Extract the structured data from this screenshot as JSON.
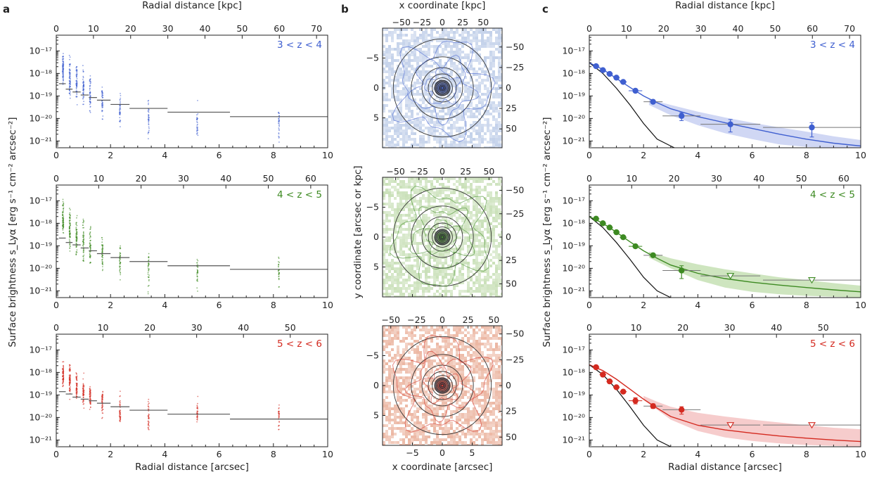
{
  "panel_letters": [
    "a",
    "b",
    "c"
  ],
  "labels": {
    "top_axis": "Radial distance [kpc]",
    "bottom_axis": "Radial distance [arcsec]",
    "y_axis": "Surface brightness s_Lyα [erg s⁻¹ cm⁻² arcsec⁻²]",
    "b_top_axis": "x coordinate [kpc]",
    "b_bottom_axis": "x coordinate [arcsec]",
    "b_y_axis": "y coordinate [arcsec or kpc]"
  },
  "colors": {
    "z34": "#3f5fd0",
    "z45": "#3d8a22",
    "z56": "#d42a20",
    "z34_light": "#c3d1ea",
    "z45_light": "#c9e0b8",
    "z56_light": "#ecb7a3",
    "z34_band": "#c8d0f2",
    "z45_band": "#c6e0b4",
    "z56_band": "#f4c3c3",
    "psf": "#111111",
    "median": "#555555"
  },
  "chart_data": [
    {
      "panel": "a",
      "type": "scatter",
      "redshift_label": "3 < z < 4",
      "x_label": "Radial distance [arcsec]",
      "xlim": [
        0,
        10
      ],
      "x_ticks": [
        0,
        2,
        4,
        6,
        8,
        10
      ],
      "top_x_label": "Radial distance [kpc]",
      "top_ticks_kpc": [
        0,
        10,
        20,
        30,
        40,
        50,
        60,
        70
      ],
      "kpc_per_arcsec": 7.3,
      "y_scale": "log",
      "ylim": [
        5e-22,
        5e-17
      ],
      "y_ticks": [
        "10⁻¹⁷",
        "10⁻¹⁸",
        "10⁻¹⁹",
        "10⁻²⁰",
        "10⁻²¹"
      ],
      "point_columns_x": [
        0.25,
        0.5,
        0.75,
        1.0,
        1.25,
        1.7,
        2.35,
        3.4,
        5.2,
        8.2
      ],
      "column_ranges_log10": [
        [
          -18.7,
          -16.8
        ],
        [
          -19.5,
          -16.9
        ],
        [
          -19.6,
          -17.1
        ],
        [
          -19.8,
          -17.5
        ],
        [
          -19.9,
          -17.8
        ],
        [
          -20.2,
          -18.2
        ],
        [
          -20.8,
          -18.4
        ],
        [
          -21.2,
          -18.7
        ],
        [
          -21.3,
          -19.1
        ],
        [
          -21.2,
          -19.3
        ]
      ],
      "median_bins": [
        {
          "x0": 0.1,
          "x1": 0.35,
          "y": 3.5e-19
        },
        {
          "x0": 0.35,
          "x1": 0.6,
          "y": 2e-19
        },
        {
          "x0": 0.6,
          "x1": 0.9,
          "y": 1.5e-19
        },
        {
          "x0": 0.9,
          "x1": 1.2,
          "y": 1.1e-19
        },
        {
          "x0": 1.2,
          "x1": 1.5,
          "y": 8.5e-20
        },
        {
          "x0": 1.5,
          "x1": 2.0,
          "y": 6.5e-20
        },
        {
          "x0": 2.0,
          "x1": 2.7,
          "y": 4.2e-20
        },
        {
          "x0": 2.7,
          "x1": 4.1,
          "y": 2.8e-20
        },
        {
          "x0": 4.1,
          "x1": 6.4,
          "y": 1.9e-20
        },
        {
          "x0": 6.4,
          "x1": 10,
          "y": 1.2e-20
        }
      ]
    },
    {
      "panel": "a",
      "type": "scatter",
      "redshift_label": "4 < z < 5",
      "x_label": "Radial distance [arcsec]",
      "xlim": [
        0,
        10
      ],
      "x_ticks": [
        0,
        2,
        4,
        6,
        8,
        10
      ],
      "top_x_label": "Radial distance [kpc]",
      "top_ticks_kpc": [
        0,
        10,
        20,
        30,
        40,
        50,
        60
      ],
      "kpc_per_arcsec": 6.4,
      "y_scale": "log",
      "ylim": [
        5e-22,
        5e-17
      ],
      "y_ticks": [
        "10⁻¹⁷",
        "10⁻¹⁸",
        "10⁻¹⁹",
        "10⁻²⁰",
        "10⁻²¹"
      ],
      "point_columns_x": [
        0.25,
        0.5,
        0.75,
        1.0,
        1.25,
        1.7,
        2.35,
        3.4,
        5.2,
        8.2
      ],
      "column_ranges_log10": [
        [
          -18.9,
          -16.8
        ],
        [
          -19.6,
          -17.0
        ],
        [
          -19.8,
          -17.3
        ],
        [
          -20.0,
          -17.6
        ],
        [
          -20.2,
          -17.9
        ],
        [
          -20.5,
          -18.3
        ],
        [
          -20.9,
          -18.5
        ],
        [
          -21.3,
          -18.8
        ],
        [
          -21.2,
          -19.1
        ],
        [
          -21.2,
          -19.3
        ]
      ],
      "median_bins": [
        {
          "x0": 0.1,
          "x1": 0.35,
          "y": 2.2e-19
        },
        {
          "x0": 0.35,
          "x1": 0.6,
          "y": 1.4e-19
        },
        {
          "x0": 0.6,
          "x1": 0.9,
          "y": 1.1e-19
        },
        {
          "x0": 0.9,
          "x1": 1.2,
          "y": 8e-20
        },
        {
          "x0": 1.2,
          "x1": 1.5,
          "y": 6e-20
        },
        {
          "x0": 1.5,
          "x1": 2.0,
          "y": 4.5e-20
        },
        {
          "x0": 2.0,
          "x1": 2.7,
          "y": 3e-20
        },
        {
          "x0": 2.7,
          "x1": 4.1,
          "y": 2e-20
        },
        {
          "x0": 4.1,
          "x1": 6.4,
          "y": 1.3e-20
        },
        {
          "x0": 6.4,
          "x1": 10,
          "y": 9e-21
        }
      ]
    },
    {
      "panel": "a",
      "type": "scatter",
      "redshift_label": "5 < z < 6",
      "x_label": "Radial distance [arcsec]",
      "xlim": [
        0,
        10
      ],
      "x_ticks": [
        0,
        2,
        4,
        6,
        8,
        10
      ],
      "top_x_label": "Radial distance [kpc]",
      "top_ticks_kpc": [
        0,
        10,
        20,
        30,
        40,
        50
      ],
      "kpc_per_arcsec": 5.8,
      "y_scale": "log",
      "ylim": [
        5e-22,
        5e-17
      ],
      "y_ticks": [
        "10⁻¹⁷",
        "10⁻¹⁸",
        "10⁻¹⁹",
        "10⁻²⁰",
        "10⁻²¹"
      ],
      "point_columns_x": [
        0.25,
        0.5,
        0.75,
        1.0,
        1.25,
        1.7,
        2.35,
        3.4,
        5.2,
        8.2
      ],
      "column_ranges_log10": [
        [
          -18.9,
          -17.3
        ],
        [
          -19.4,
          -17.3
        ],
        [
          -19.7,
          -17.6
        ],
        [
          -19.8,
          -17.9
        ],
        [
          -20.0,
          -18.2
        ],
        [
          -20.3,
          -18.4
        ],
        [
          -21.0,
          -18.6
        ],
        [
          -20.8,
          -18.9
        ],
        [
          -20.7,
          -18.8
        ],
        [
          -20.7,
          -19.3
        ]
      ],
      "median_bins": [
        {
          "x0": 0.1,
          "x1": 0.35,
          "y": 1.4e-19
        },
        {
          "x0": 0.35,
          "x1": 0.6,
          "y": 1.1e-19
        },
        {
          "x0": 0.6,
          "x1": 0.9,
          "y": 8e-20
        },
        {
          "x0": 0.9,
          "x1": 1.2,
          "y": 6.5e-20
        },
        {
          "x0": 1.2,
          "x1": 1.5,
          "y": 5.5e-20
        },
        {
          "x0": 1.5,
          "x1": 2.0,
          "y": 4.3e-20
        },
        {
          "x0": 2.0,
          "x1": 2.7,
          "y": 3e-20
        },
        {
          "x0": 2.7,
          "x1": 4.1,
          "y": 2.1e-20
        },
        {
          "x0": 4.1,
          "x1": 6.4,
          "y": 1.4e-20
        },
        {
          "x0": 6.4,
          "x1": 10,
          "y": 8.5e-21
        }
      ]
    },
    {
      "panel": "b",
      "type": "heatmap",
      "redshift": "3 < z < 4",
      "x_label": "x coordinate [arcsec]",
      "top_x_label": "x coordinate [kpc]",
      "y_label": "y coordinate [arcsec or kpc]",
      "xlim": [
        -10,
        10
      ],
      "ylim": [
        -10,
        10
      ],
      "x_ticks": [
        -5,
        0,
        5
      ],
      "y_ticks": [
        -5,
        0,
        5
      ],
      "kpc_ticks": [
        "−50",
        "−25",
        "0",
        "25",
        "50"
      ],
      "right_kpc_ticks": [
        "50",
        "25",
        "0",
        "−25",
        "−50"
      ],
      "kpc_per_arcsec": 7.3,
      "circle_radii_arcsec": [
        0.25,
        0.5,
        0.75,
        1.0,
        1.25,
        1.7,
        2.35,
        3.4,
        5.2,
        8.2
      ]
    },
    {
      "panel": "b",
      "type": "heatmap",
      "redshift": "4 < z < 5",
      "x_label": "x coordinate [arcsec]",
      "top_x_label": "x coordinate [kpc]",
      "y_label": "y coordinate [arcsec or kpc]",
      "xlim": [
        -10,
        10
      ],
      "ylim": [
        -10,
        10
      ],
      "x_ticks": [
        -5,
        0,
        5
      ],
      "y_ticks": [
        -5,
        0,
        5
      ],
      "kpc_ticks": [
        "−50",
        "−25",
        "0",
        "25",
        "50"
      ],
      "right_kpc_ticks": [
        "50",
        "25",
        "0",
        "−25",
        "−50"
      ],
      "kpc_per_arcsec": 6.4,
      "circle_radii_arcsec": [
        0.25,
        0.5,
        0.75,
        1.0,
        1.25,
        1.7,
        2.35,
        3.4,
        5.2,
        8.2
      ]
    },
    {
      "panel": "b",
      "type": "heatmap",
      "redshift": "5 < z < 6",
      "x_label": "x coordinate [arcsec]",
      "top_x_label": "x coordinate [kpc]",
      "y_label": "y coordinate [arcsec or kpc]",
      "xlim": [
        -10,
        10
      ],
      "ylim": [
        -10,
        10
      ],
      "x_ticks": [
        -5,
        0,
        5
      ],
      "y_ticks": [
        -5,
        0,
        5
      ],
      "kpc_ticks": [
        "−50",
        "−25",
        "0",
        "25",
        "50"
      ],
      "right_kpc_ticks": [
        "50",
        "25",
        "0",
        "−25",
        "−50"
      ],
      "kpc_per_arcsec": 5.8,
      "circle_radii_arcsec": [
        0.25,
        0.5,
        0.75,
        1.0,
        1.25,
        1.7,
        2.35,
        3.4,
        5.2,
        8.2
      ]
    },
    {
      "panel": "c",
      "type": "line",
      "redshift_label": "3 < z < 4",
      "x_label": "Radial distance [arcsec]",
      "xlim": [
        0,
        10
      ],
      "x_ticks": [
        0,
        2,
        4,
        6,
        8,
        10
      ],
      "top_x_label": "Radial distance [kpc]",
      "top_ticks_kpc": [
        0,
        10,
        20,
        30,
        40,
        50,
        60,
        70
      ],
      "kpc_per_arcsec": 7.3,
      "y_scale": "log",
      "ylim": [
        5e-22,
        5e-17
      ],
      "y_ticks": [
        "10⁻¹⁷",
        "10⁻¹⁸",
        "10⁻¹⁹",
        "10⁻²⁰",
        "10⁻²¹"
      ],
      "points": [
        {
          "x": 0.25,
          "y": 2.1e-18,
          "xerr": 0.12
        },
        {
          "x": 0.5,
          "y": 1.4e-18,
          "xerr": 0.12
        },
        {
          "x": 0.75,
          "y": 9.5e-19,
          "xerr": 0.12
        },
        {
          "x": 1.0,
          "y": 6.5e-19,
          "xerr": 0.12
        },
        {
          "x": 1.25,
          "y": 4.2e-19,
          "xerr": 0.13
        },
        {
          "x": 1.7,
          "y": 1.7e-19,
          "xerr": 0.25
        },
        {
          "x": 2.35,
          "y": 5.5e-20,
          "xerr": 0.35
        },
        {
          "x": 3.4,
          "y": 1.3e-20,
          "xerr": 0.7,
          "yerr": [
            8e-21,
            1.8e-20
          ]
        },
        {
          "x": 5.2,
          "y": 5.5e-21,
          "xerr": 1.1,
          "yerr": [
            2.5e-21,
            9e-21
          ]
        },
        {
          "x": 8.2,
          "y": 4e-21,
          "xerr": 1.8,
          "yerr": [
            1.5e-21,
            6.5e-21
          ]
        }
      ],
      "model": {
        "x": [
          0,
          0.5,
          1,
          1.5,
          2,
          2.5,
          3,
          4,
          5,
          6,
          7,
          8,
          9,
          10
        ],
        "y": [
          3e-18,
          1.5e-18,
          6e-19,
          2.4e-19,
          1e-19,
          5e-20,
          2.7e-20,
          1.2e-20,
          6.5e-21,
          3.6e-21,
          2e-21,
          1.2e-21,
          8e-22,
          6e-22
        ]
      },
      "band": {
        "x": [
          2.2,
          3,
          4,
          5,
          6,
          7,
          8,
          9,
          10
        ],
        "lo": [
          4e-20,
          1.4e-20,
          5e-21,
          2.2e-21,
          1.2e-21,
          7e-22,
          5.5e-22,
          5e-22,
          5e-22
        ],
        "hi": [
          7e-20,
          4e-20,
          2e-20,
          1.1e-20,
          6.5e-21,
          4e-21,
          2.6e-21,
          1.6e-21,
          1.1e-21
        ]
      },
      "psf": {
        "x": [
          0,
          0.5,
          1,
          1.5,
          2,
          2.5,
          3,
          3.3
        ],
        "y": [
          3e-18,
          1e-18,
          2.2e-19,
          4e-20,
          6e-21,
          1.2e-21,
          6e-22,
          4e-22
        ]
      }
    },
    {
      "panel": "c",
      "type": "line",
      "redshift_label": "4 < z < 5",
      "x_label": "Radial distance [arcsec]",
      "xlim": [
        0,
        10
      ],
      "x_ticks": [
        0,
        2,
        4,
        6,
        8,
        10
      ],
      "top_x_label": "Radial distance [kpc]",
      "top_ticks_kpc": [
        0,
        10,
        20,
        30,
        40,
        50,
        60
      ],
      "kpc_per_arcsec": 6.4,
      "y_scale": "log",
      "ylim": [
        5e-22,
        5e-17
      ],
      "y_ticks": [
        "10⁻¹⁷",
        "10⁻¹⁸",
        "10⁻¹⁹",
        "10⁻²⁰",
        "10⁻²¹"
      ],
      "points": [
        {
          "x": 0.25,
          "y": 1.6e-18,
          "xerr": 0.12
        },
        {
          "x": 0.5,
          "y": 1e-18,
          "xerr": 0.12
        },
        {
          "x": 0.75,
          "y": 6.5e-19,
          "xerr": 0.12
        },
        {
          "x": 1.0,
          "y": 4e-19,
          "xerr": 0.12
        },
        {
          "x": 1.25,
          "y": 2.4e-19,
          "xerr": 0.13
        },
        {
          "x": 1.7,
          "y": 9.5e-20,
          "xerr": 0.25
        },
        {
          "x": 2.35,
          "y": 3.8e-20,
          "xerr": 0.35
        },
        {
          "x": 3.4,
          "y": 8e-21,
          "xerr": 0.7,
          "yerr": [
            3.5e-21,
            1.3e-20
          ]
        },
        {
          "x": 5.2,
          "y": 4.6e-21,
          "xerr": 1.1,
          "upper_limit": true
        },
        {
          "x": 8.2,
          "y": 3e-21,
          "xerr": 1.8,
          "upper_limit": true
        }
      ],
      "model": {
        "x": [
          0,
          0.5,
          1,
          1.5,
          2,
          2.5,
          3,
          4,
          5,
          6,
          7,
          8,
          9,
          10
        ],
        "y": [
          2e-18,
          1e-18,
          4e-19,
          1.5e-19,
          6e-20,
          2.8e-20,
          1.4e-20,
          6e-21,
          3.5e-21,
          2.4e-21,
          1.8e-21,
          1.4e-21,
          1.1e-21,
          9e-22
        ]
      },
      "band": {
        "x": [
          2.2,
          3,
          4,
          5,
          6,
          7,
          8,
          9,
          10
        ],
        "lo": [
          3e-20,
          1e-20,
          3e-21,
          1.4e-21,
          9e-22,
          7e-22,
          6e-22,
          5.5e-22,
          5e-22
        ],
        "hi": [
          5.5e-20,
          2.8e-20,
          1.5e-20,
          9e-21,
          6e-21,
          4e-21,
          3e-21,
          2.2e-21,
          1.7e-21
        ]
      },
      "psf": {
        "x": [
          0,
          0.5,
          1,
          1.5,
          2,
          2.5,
          3,
          3.3
        ],
        "y": [
          2e-18,
          6.5e-19,
          1.4e-19,
          2.5e-20,
          4e-21,
          1e-21,
          5e-22,
          4e-22
        ]
      }
    },
    {
      "panel": "c",
      "type": "line",
      "redshift_label": "5 < z < 6",
      "x_label": "Radial distance [arcsec]",
      "xlim": [
        0,
        10
      ],
      "x_ticks": [
        0,
        2,
        4,
        6,
        8,
        10
      ],
      "top_x_label": "Radial distance [kpc]",
      "top_ticks_kpc": [
        0,
        10,
        20,
        30,
        40,
        50
      ],
      "kpc_per_arcsec": 5.8,
      "y_scale": "log",
      "ylim": [
        5e-22,
        5e-17
      ],
      "y_ticks": [
        "10⁻¹⁷",
        "10⁻¹⁸",
        "10⁻¹⁹",
        "10⁻²⁰",
        "10⁻²¹"
      ],
      "points": [
        {
          "x": 0.25,
          "y": 1.7e-18,
          "xerr": 0.12
        },
        {
          "x": 0.5,
          "y": 8e-19,
          "xerr": 0.12
        },
        {
          "x": 0.75,
          "y": 4e-19,
          "xerr": 0.12
        },
        {
          "x": 1.0,
          "y": 2.2e-19,
          "xerr": 0.12
        },
        {
          "x": 1.25,
          "y": 1.4e-19,
          "xerr": 0.13
        },
        {
          "x": 1.7,
          "y": 5.5e-20,
          "xerr": 0.25,
          "yerr": [
            4e-20,
            7.5e-20
          ]
        },
        {
          "x": 2.35,
          "y": 3.2e-20,
          "xerr": 0.35,
          "yerr": [
            2.5e-20,
            4e-20
          ]
        },
        {
          "x": 3.4,
          "y": 2.2e-20,
          "xerr": 0.7,
          "yerr": [
            1.4e-20,
            3e-20
          ]
        },
        {
          "x": 5.2,
          "y": 4.6e-21,
          "xerr": 1.1,
          "upper_limit": true
        },
        {
          "x": 8.2,
          "y": 4.6e-21,
          "xerr": 1.8,
          "upper_limit": true
        }
      ],
      "model": {
        "x": [
          0,
          0.5,
          1,
          1.5,
          2,
          2.5,
          3,
          4,
          5,
          6,
          7,
          8,
          9,
          10
        ],
        "y": [
          2.2e-18,
          1.2e-18,
          5e-19,
          1.8e-19,
          6.5e-20,
          2.6e-20,
          1.1e-20,
          4.5e-21,
          2.8e-21,
          2e-21,
          1.5e-21,
          1.2e-21,
          1e-21,
          8.5e-22
        ]
      },
      "band": {
        "x": [
          2.0,
          2.5,
          3,
          4,
          5,
          6,
          7,
          8,
          9,
          10
        ],
        "lo": [
          6e-20,
          2.2e-20,
          8e-21,
          2.5e-21,
          1.3e-21,
          9e-22,
          7e-22,
          6e-22,
          5.5e-22,
          5e-22
        ],
        "hi": [
          9e-20,
          5e-20,
          3e-20,
          1.6e-20,
          1.1e-20,
          8e-21,
          6e-21,
          4.5e-21,
          3.5e-21,
          3e-21
        ]
      },
      "psf": {
        "x": [
          0,
          0.5,
          1,
          1.5,
          2,
          2.5,
          3,
          3.3
        ],
        "y": [
          2.2e-18,
          8e-19,
          1.8e-19,
          3e-20,
          4.5e-21,
          1e-21,
          5e-22,
          4e-22
        ]
      }
    }
  ]
}
